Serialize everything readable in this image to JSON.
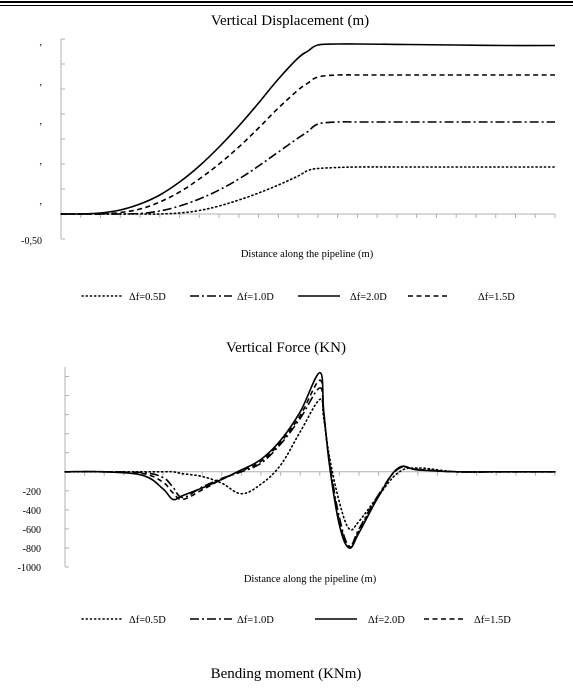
{
  "chart_data": [
    {
      "type": "line",
      "title": "Vertical Displacement (m)",
      "xlabel": "Distance along the pipeline (m)",
      "ylabel": "",
      "y_tick_labels": [
        ",",
        ",",
        ",",
        ",",
        ",",
        "-0,50"
      ],
      "ylim": [
        -0.5,
        3.5
      ],
      "xlim": [
        0,
        500
      ],
      "grid": false,
      "legend_position": "bottom",
      "x": [
        0,
        20,
        40,
        60,
        80,
        100,
        120,
        140,
        160,
        180,
        200,
        220,
        240,
        250,
        260,
        280,
        300,
        350,
        400,
        450,
        500
      ],
      "series": [
        {
          "name": "Δf=0.5D",
          "style": "dotted",
          "values": [
            0,
            0,
            0,
            0,
            0,
            0,
            0.02,
            0.07,
            0.16,
            0.28,
            0.42,
            0.58,
            0.76,
            0.87,
            0.91,
            0.93,
            0.94,
            0.94,
            0.94,
            0.94,
            0.94
          ]
        },
        {
          "name": "Δf=1.0D",
          "style": "dashdot",
          "values": [
            0,
            0,
            0,
            0,
            0.01,
            0.06,
            0.16,
            0.3,
            0.48,
            0.7,
            0.96,
            1.24,
            1.52,
            1.65,
            1.8,
            1.84,
            1.84,
            1.84,
            1.84,
            1.84,
            1.84
          ]
        },
        {
          "name": "Δf=2.0D",
          "style": "solid",
          "values": [
            0,
            0,
            0.02,
            0.08,
            0.2,
            0.38,
            0.64,
            0.96,
            1.34,
            1.76,
            2.22,
            2.7,
            3.12,
            3.26,
            3.38,
            3.4,
            3.4,
            3.39,
            3.38,
            3.37,
            3.37
          ]
        },
        {
          "name": "Δf=1.5D",
          "style": "dashed",
          "values": [
            0,
            0,
            0,
            0.03,
            0.1,
            0.24,
            0.44,
            0.7,
            1.0,
            1.34,
            1.72,
            2.12,
            2.48,
            2.62,
            2.74,
            2.78,
            2.78,
            2.78,
            2.78,
            2.78,
            2.78
          ]
        }
      ]
    },
    {
      "type": "line",
      "title": "Vertical Force (KN)",
      "xlabel": "Distance along the pipeline (m)",
      "ylabel": "",
      "y_tick_labels": [
        "-200",
        "-400",
        "-600",
        "-800",
        "-1000"
      ],
      "y_ticks": [
        -200,
        -400,
        -600,
        -800,
        -1000
      ],
      "ylim": [
        -1000,
        1100
      ],
      "xlim": [
        0,
        500
      ],
      "grid": false,
      "legend_position": "bottom",
      "x": [
        0,
        40,
        80,
        100,
        110,
        120,
        140,
        160,
        180,
        200,
        220,
        240,
        260,
        264,
        270,
        280,
        290,
        300,
        320,
        340,
        360,
        400,
        450,
        500
      ],
      "series": [
        {
          "name": "Δf=0.5D",
          "style": "dotted",
          "values": [
            0,
            0,
            0,
            0,
            0,
            -20,
            -50,
            -120,
            -230,
            -130,
            70,
            420,
            760,
            560,
            150,
            -320,
            -600,
            -520,
            -250,
            -10,
            40,
            0,
            0,
            0
          ]
        },
        {
          "name": "Δf=1.0D",
          "style": "dashdot",
          "values": [
            0,
            0,
            -10,
            -60,
            -160,
            -270,
            -160,
            -70,
            0,
            90,
            290,
            560,
            880,
            600,
            100,
            -480,
            -780,
            -600,
            -240,
            30,
            25,
            0,
            0,
            0
          ]
        },
        {
          "name": "Δf=2.0D",
          "style": "solid",
          "values": [
            0,
            0,
            -40,
            -180,
            -290,
            -250,
            -170,
            -80,
            20,
            130,
            330,
            630,
            1040,
            640,
            60,
            -560,
            -800,
            -640,
            -260,
            40,
            20,
            0,
            0,
            0
          ]
        },
        {
          "name": "Δf=1.5D",
          "style": "dashed",
          "values": [
            0,
            0,
            -20,
            -110,
            -220,
            -290,
            -190,
            -80,
            10,
            110,
            310,
            590,
            960,
            620,
            80,
            -520,
            -790,
            -620,
            -250,
            35,
            22,
            0,
            0,
            0
          ]
        }
      ]
    },
    {
      "type": "line",
      "title": "Bending moment (KNm)"
    }
  ]
}
